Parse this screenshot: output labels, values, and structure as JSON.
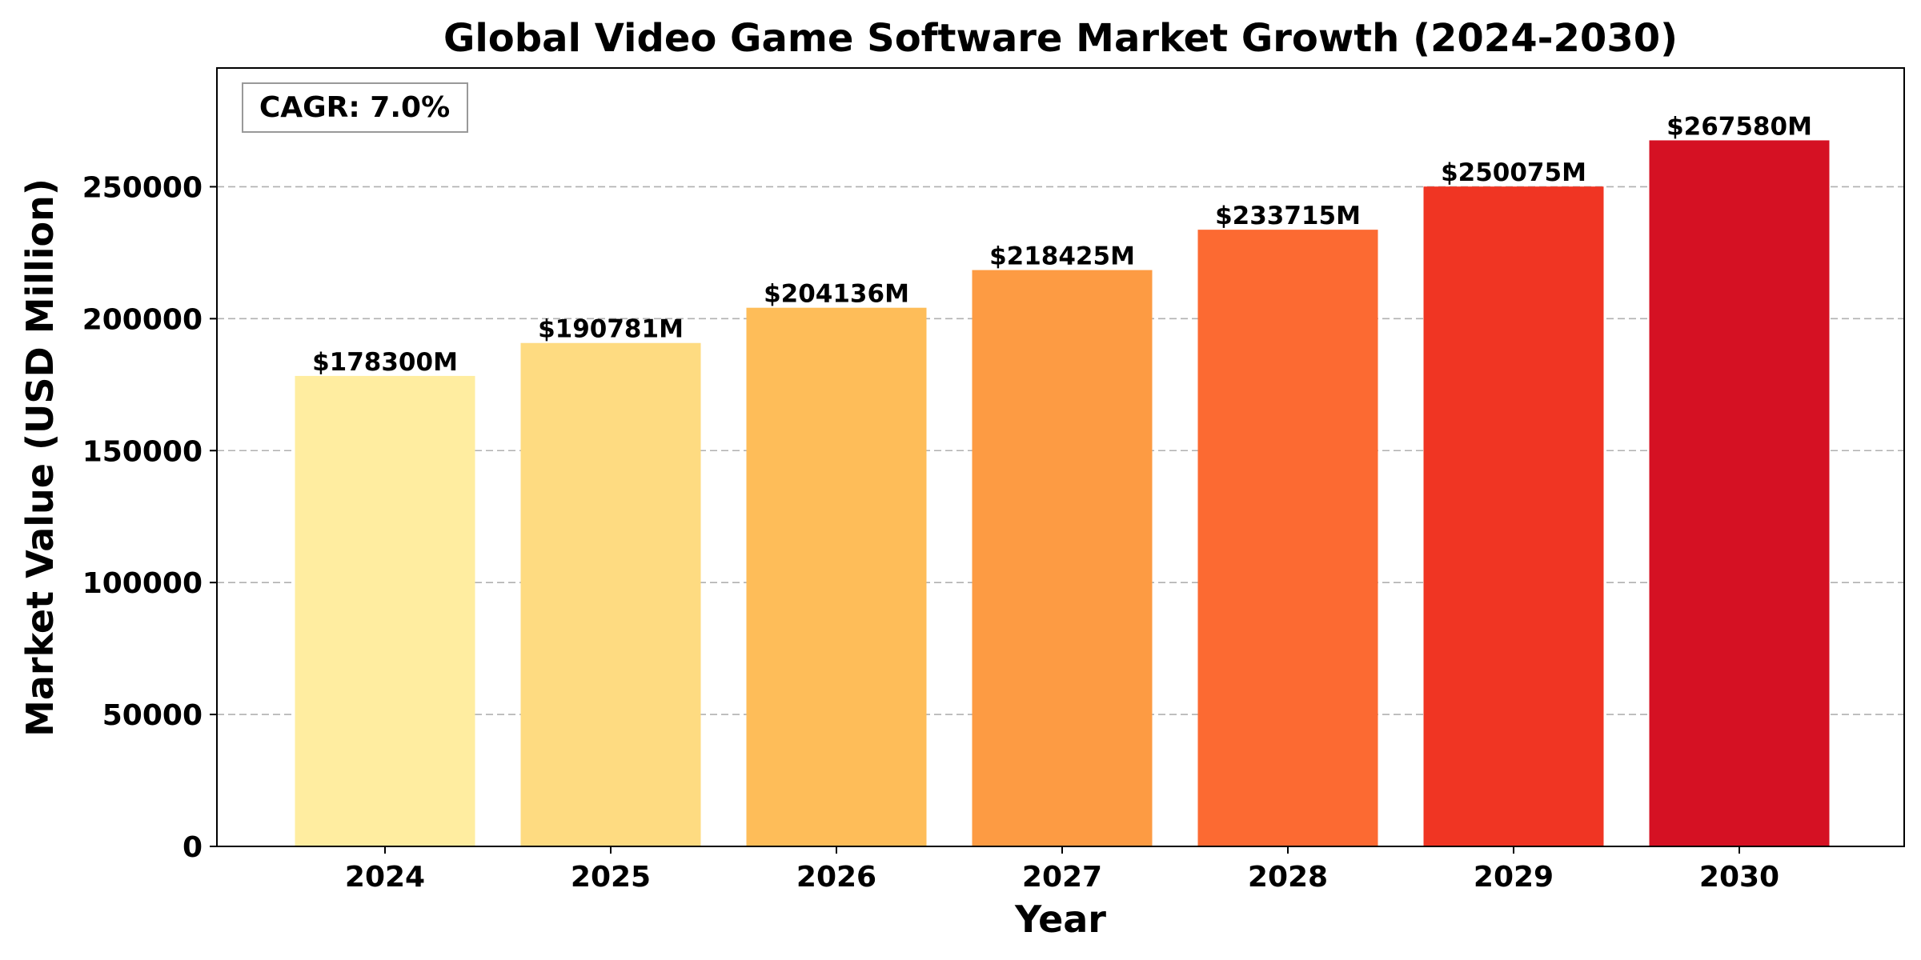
{
  "chart_data": {
    "type": "bar",
    "title": "Global Video Game Software Market Growth (2024-2030)",
    "xlabel": "Year",
    "ylabel": "Market Value (USD Million)",
    "categories": [
      "2024",
      "2025",
      "2026",
      "2027",
      "2028",
      "2029",
      "2030"
    ],
    "values": [
      178300,
      190781,
      204136,
      218425,
      233715,
      250075,
      267580
    ],
    "data_labels": [
      "$178300M",
      "$190781M",
      "$204136M",
      "$218425M",
      "$233715M",
      "$250075M",
      "$267580M"
    ],
    "bar_colors": [
      "#ffeda0",
      "#fedb81",
      "#febd59",
      "#fd9b43",
      "#fc6a32",
      "#f03523",
      "#d51123"
    ],
    "ylim": [
      0,
      295000
    ],
    "yticks": [
      0,
      50000,
      100000,
      150000,
      200000,
      250000
    ],
    "ytick_labels": [
      "0",
      "50000",
      "100000",
      "150000",
      "200000",
      "250000"
    ],
    "grid": "y-dashed",
    "annotation": "CAGR: 7.0%",
    "annotation_placement": "top-left"
  }
}
